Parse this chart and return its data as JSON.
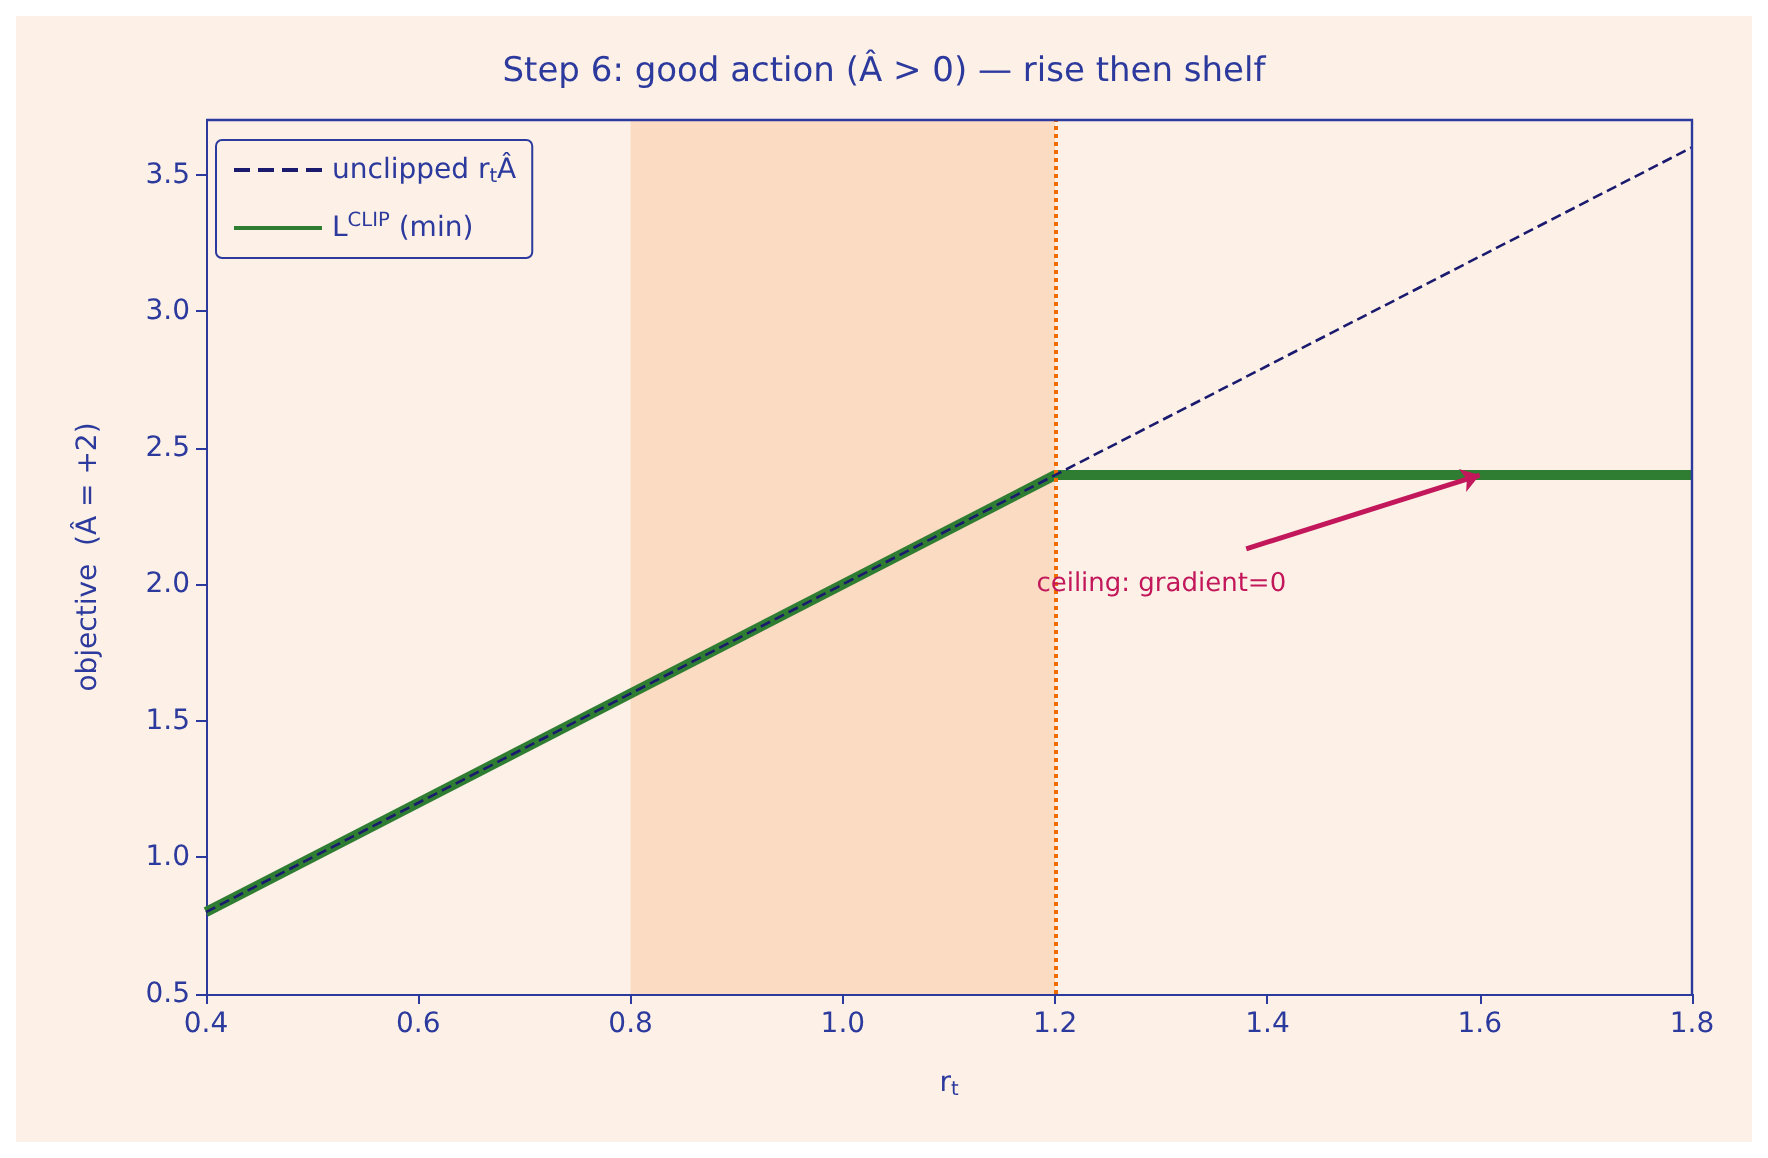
{
  "chart_data": {
    "type": "line",
    "title": "Step 6: good action (Â > 0) — rise then shelf",
    "xlabel": "r$_{t}$",
    "ylabel": "objective  (Â = +2)",
    "xlim": [
      0.4,
      1.8
    ],
    "xticks": [
      {
        "value": 0.4,
        "label": "0.4"
      },
      {
        "value": 0.6,
        "label": "0.6"
      },
      {
        "value": 0.8,
        "label": "0.8"
      },
      {
        "value": 1.0,
        "label": "1.0"
      },
      {
        "value": 1.2,
        "label": "1.2"
      },
      {
        "value": 1.4,
        "label": "1.4"
      },
      {
        "value": 1.6,
        "label": "1.6"
      },
      {
        "value": 1.8,
        "label": "1.8"
      }
    ],
    "ylim": [
      0.5,
      3.7
    ],
    "yticks": [
      {
        "value": 0.5,
        "label": "0.5"
      },
      {
        "value": 1.0,
        "label": "1.0"
      },
      {
        "value": 1.5,
        "label": "1.5"
      },
      {
        "value": 2.0,
        "label": "2.0"
      },
      {
        "value": 2.5,
        "label": "2.5"
      },
      {
        "value": 3.0,
        "label": "3.0"
      },
      {
        "value": 3.5,
        "label": "3.5"
      }
    ],
    "series": [
      {
        "name": "unclipped r$_{t}$Â",
        "color": "#1a1a6e",
        "line_style": "dashed",
        "x": [
          0.4,
          1.8
        ],
        "values": [
          0.8,
          3.6
        ]
      },
      {
        "name": "L$^{CLIP}$ (min)",
        "color": "#2e7d32",
        "line_style": "solid",
        "x": [
          0.4,
          1.2,
          1.8
        ],
        "values": [
          0.8,
          2.4,
          2.4
        ]
      }
    ],
    "bands": [
      {
        "axis": "x",
        "from": 0.8,
        "to": 1.2,
        "color": "#fbdcc2"
      }
    ],
    "ref_lines": [
      {
        "axis": "x",
        "value": 1.2,
        "color": "#ef6c00",
        "line_style": "dotted"
      }
    ],
    "annotations": [
      {
        "text": "ceiling: gradient=0",
        "x": 1.6,
        "y": 2.4
      }
    ],
    "legend": "top left",
    "grid": false,
    "marker": "none"
  }
}
